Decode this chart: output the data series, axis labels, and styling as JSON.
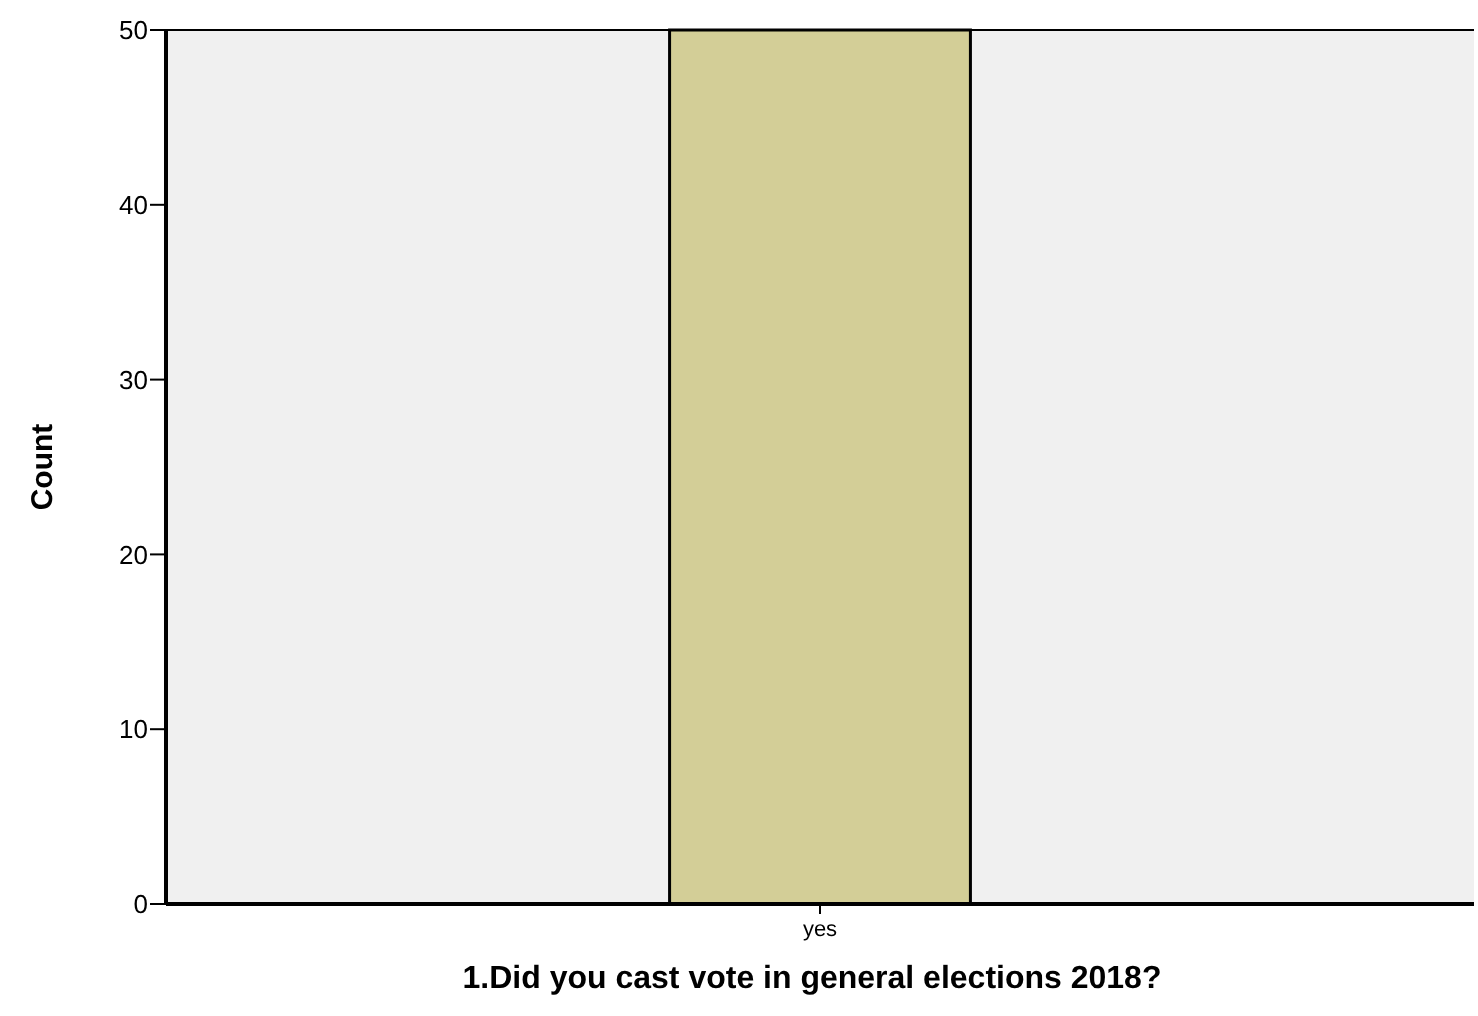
{
  "chart_data": {
    "type": "bar",
    "xlabel": "1.Did you cast vote in general elections 2018?",
    "ylabel": "Count",
    "categories": [
      "yes"
    ],
    "values": [
      50
    ],
    "color": "#d3ce97",
    "ylim": [
      0,
      50
    ],
    "yticks": [
      0,
      10,
      20,
      30,
      40,
      50
    ],
    "grid": false
  }
}
